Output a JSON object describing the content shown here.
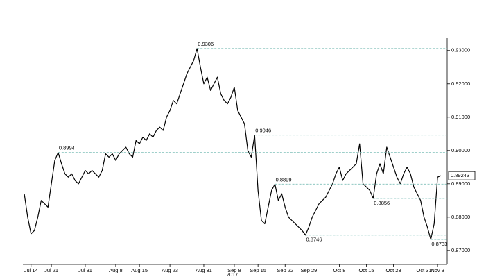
{
  "chart_data": {
    "type": "line",
    "categories": [
      null,
      null,
      "Jul 14",
      null,
      null,
      null,
      null,
      null,
      "Jul 21",
      null,
      null,
      null,
      null,
      null,
      null,
      null,
      null,
      null,
      "Jul 31",
      null,
      null,
      null,
      null,
      null,
      null,
      null,
      null,
      "Aug 8",
      null,
      null,
      null,
      null,
      null,
      null,
      "Aug 15",
      null,
      null,
      null,
      null,
      null,
      null,
      null,
      null,
      "Aug 23",
      null,
      null,
      null,
      null,
      null,
      null,
      null,
      null,
      null,
      "Aug 31",
      null,
      null,
      null,
      null,
      null,
      null,
      null,
      null,
      "Sep 8",
      null,
      null,
      null,
      null,
      null,
      null,
      "Sep 15",
      null,
      null,
      null,
      null,
      null,
      null,
      null,
      "Sep 22",
      null,
      null,
      null,
      null,
      null,
      null,
      "Sep 29",
      null,
      null,
      null,
      null,
      null,
      null,
      null,
      null,
      "Oct 8",
      null,
      null,
      null,
      null,
      null,
      null,
      null,
      "Oct 15",
      null,
      null,
      null,
      null,
      null,
      null,
      null,
      "Oct 23",
      null,
      null,
      null,
      null,
      null,
      null,
      null,
      null,
      "Oct 31",
      null,
      null,
      null,
      "Nov 3",
      null
    ],
    "x_label": "2017",
    "series": [
      {
        "color": "#000000",
        "values": [
          0.887,
          0.88,
          0.875,
          0.876,
          0.88,
          0.885,
          0.884,
          0.883,
          0.89,
          0.897,
          0.8994,
          0.896,
          0.893,
          0.892,
          0.893,
          0.891,
          0.89,
          0.892,
          0.894,
          0.893,
          0.894,
          0.893,
          0.892,
          0.894,
          0.899,
          0.898,
          0.899,
          0.897,
          0.899,
          0.9,
          0.901,
          0.899,
          0.898,
          0.903,
          0.902,
          0.904,
          0.903,
          0.905,
          0.904,
          0.906,
          0.907,
          0.906,
          0.91,
          0.912,
          0.915,
          0.914,
          0.917,
          0.92,
          0.923,
          0.925,
          0.927,
          0.9306,
          0.925,
          0.92,
          0.922,
          0.918,
          0.92,
          0.922,
          0.917,
          0.915,
          0.914,
          0.916,
          0.919,
          0.912,
          0.91,
          0.908,
          0.9,
          0.898,
          0.9046,
          0.888,
          0.879,
          0.878,
          0.883,
          0.888,
          0.8899,
          0.885,
          0.887,
          0.883,
          0.88,
          0.879,
          0.878,
          0.877,
          0.876,
          0.8746,
          0.877,
          0.88,
          0.882,
          0.884,
          0.885,
          0.886,
          0.888,
          0.89,
          0.893,
          0.895,
          0.891,
          0.893,
          0.894,
          0.895,
          0.896,
          0.902,
          0.89,
          0.889,
          0.888,
          0.8856,
          0.893,
          0.896,
          0.893,
          0.901,
          0.898,
          0.895,
          0.892,
          0.89,
          0.893,
          0.895,
          0.893,
          0.889,
          0.887,
          0.885,
          0.88,
          0.877,
          0.8733,
          0.878,
          0.892,
          0.89243
        ]
      }
    ],
    "annotations": [
      0.9306,
      0.9046,
      0.8994,
      0.8899,
      0.8856,
      0.8746,
      0.8733
    ],
    "ylim": [
      0.8658,
      0.9337
    ],
    "yticks": [
      {
        "value": 0.87,
        "label": "0.87000"
      },
      {
        "value": 0.88,
        "label": "0.88000"
      },
      {
        "value": 0.89,
        "label": "0.89000"
      },
      {
        "value": 0.9,
        "label": "0.90000"
      },
      {
        "value": 0.91,
        "label": "0.91000"
      },
      {
        "value": 0.92,
        "label": "0.92000"
      },
      {
        "value": 0.93,
        "label": "0.93000"
      }
    ],
    "annotation_color": "#7fbfb8"
  }
}
